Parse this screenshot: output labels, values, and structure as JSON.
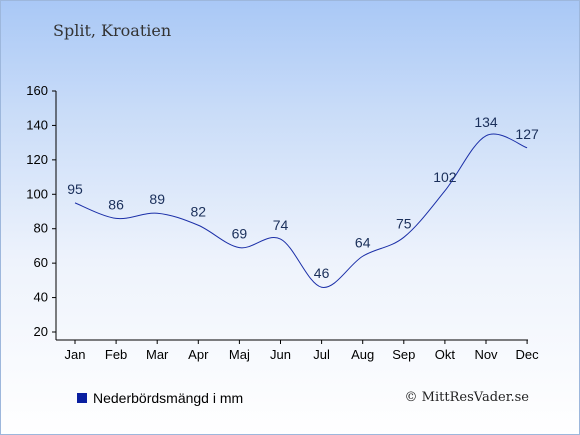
{
  "chart_data": {
    "type": "line",
    "title": "Split, Kroatien",
    "categories": [
      "Jan",
      "Feb",
      "Mar",
      "Apr",
      "Maj",
      "Jun",
      "Jul",
      "Aug",
      "Sep",
      "Okt",
      "Nov",
      "Dec"
    ],
    "series": [
      {
        "name": "Nederbördsmängd i mm",
        "values": [
          95,
          86,
          89,
          82,
          69,
          74,
          46,
          64,
          75,
          102,
          134,
          127
        ],
        "color": "#1b2fa8"
      }
    ],
    "yticks": [
      20,
      40,
      60,
      80,
      100,
      120,
      140,
      160
    ],
    "ylim": [
      20,
      160
    ],
    "xlabel": "",
    "ylabel": "",
    "grid": false,
    "legend_position": "bottom-left"
  },
  "credit": "© MittResVader.se",
  "colors": {
    "line": "#1b2fa8",
    "legend_swatch": "#0a1fa0",
    "axis": "#000000"
  }
}
